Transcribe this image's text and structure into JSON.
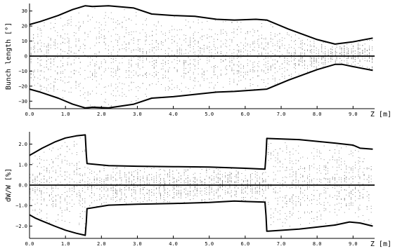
{
  "chart_data": [
    {
      "type": "line",
      "ylabel": "Bunch length [°]",
      "xlabel": "Z [m]",
      "xlim": [
        0,
        9.6
      ],
      "ylim": [
        -35,
        35
      ],
      "xticks": [
        "0.0",
        "1.0",
        "2.0",
        "3.0",
        "4.0",
        "5.0",
        "6.0",
        "7.0",
        "8.0",
        "9.0"
      ],
      "yticks": [
        "30",
        "20",
        "10",
        "0",
        "−10",
        "−20",
        "−30"
      ],
      "series": [
        {
          "x": [
            0,
            0.3,
            0.8,
            1.2,
            1.55,
            1.75,
            2.2,
            2.9,
            3.4,
            4.0,
            4.6,
            5.2,
            5.7,
            6.3,
            6.6,
            7.2,
            8.0,
            8.5,
            9.0,
            9.55
          ],
          "y": [
            21,
            23,
            27,
            31,
            33.5,
            33,
            33.5,
            32,
            28,
            27,
            26.5,
            24.5,
            24,
            24.5,
            24,
            18,
            11,
            8,
            9.5,
            12
          ]
        },
        {
          "x": [
            0,
            0.3,
            0.8,
            1.2,
            1.55,
            1.75,
            2.2,
            2.9,
            3.4,
            4.0,
            4.6,
            5.2,
            5.7,
            6.3,
            6.6,
            7.2,
            8.0,
            8.5,
            8.7,
            9.0,
            9.55
          ],
          "y": [
            -22,
            -24,
            -28,
            -32,
            -34.5,
            -34,
            -34.5,
            -32,
            -28,
            -27,
            -25.5,
            -24,
            -23.5,
            -22.5,
            -22,
            -16,
            -9,
            -5.5,
            -5.5,
            -7,
            -9.5
          ]
        }
      ]
    },
    {
      "type": "line",
      "ylabel": "dW/W [%]",
      "xlabel": "Z [m]",
      "xlim": [
        0,
        9.6
      ],
      "ylim": [
        -2.6,
        2.6
      ],
      "xticks": [
        "0.0",
        "1.0",
        "2.0",
        "3.0",
        "4.0",
        "5.0",
        "6.0",
        "7.0",
        "8.0",
        "9.0"
      ],
      "yticks": [
        "2.0",
        "1.0",
        "0.0",
        "−1.0",
        "−2.0"
      ],
      "series": [
        {
          "x": [
            0,
            0.15,
            0.35,
            0.7,
            1.0,
            1.3,
            1.55,
            1.58,
            1.6,
            2.2,
            3.0,
            4.0,
            5.0,
            6.0,
            6.55,
            6.58,
            6.6,
            7.5,
            8.5,
            9.0,
            9.2,
            9.55
          ],
          "y": [
            1.45,
            1.6,
            1.8,
            2.1,
            2.3,
            2.4,
            2.45,
            1.5,
            1.05,
            0.95,
            0.92,
            0.9,
            0.88,
            0.82,
            0.78,
            1.5,
            2.28,
            2.22,
            2.05,
            1.95,
            1.8,
            1.75
          ]
        },
        {
          "x": [
            0,
            0.15,
            0.35,
            0.7,
            1.0,
            1.3,
            1.55,
            1.58,
            1.6,
            2.2,
            3.0,
            4.0,
            5.0,
            5.7,
            6.0,
            6.55,
            6.58,
            6.6,
            7.5,
            8.5,
            8.9,
            9.2,
            9.55
          ],
          "y": [
            -1.45,
            -1.6,
            -1.75,
            -2.0,
            -2.2,
            -2.35,
            -2.45,
            -1.8,
            -1.15,
            -0.98,
            -0.93,
            -0.9,
            -0.85,
            -0.78,
            -0.8,
            -0.83,
            -1.5,
            -2.25,
            -2.15,
            -1.95,
            -1.8,
            -1.85,
            -2.0
          ]
        }
      ]
    }
  ]
}
